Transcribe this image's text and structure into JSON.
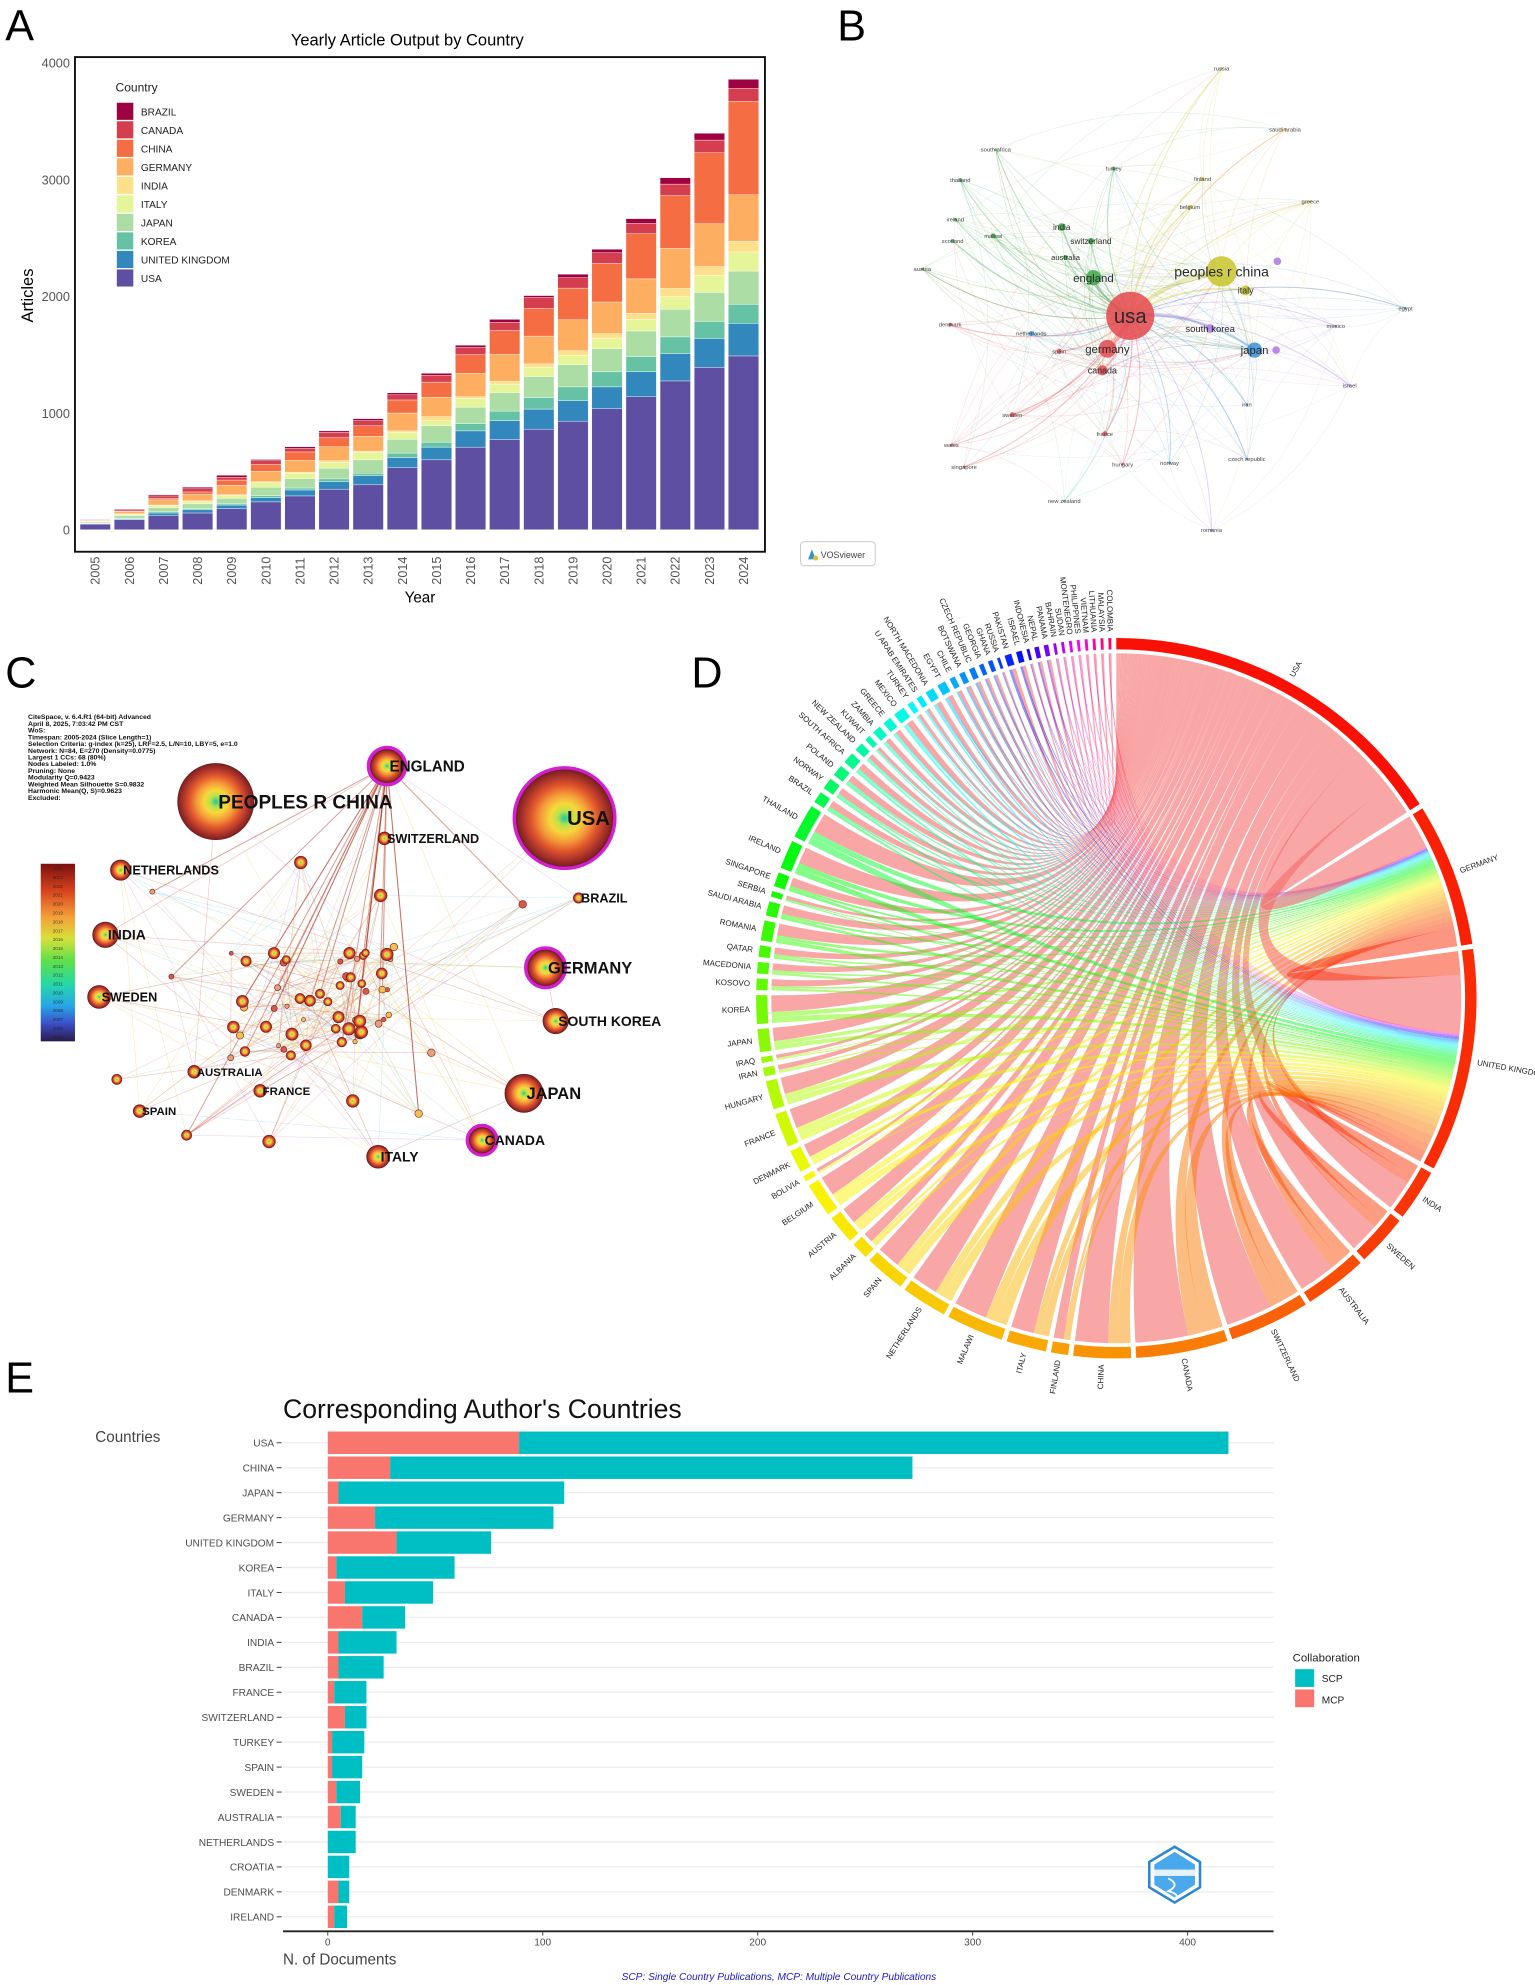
{
  "panels": {
    "a": "A",
    "b": "B",
    "c": "C",
    "d": "D",
    "e": "E"
  },
  "chart_data": [
    {
      "type": "bar",
      "stacked": true,
      "title": "Yearly Article Output by Country",
      "xlabel": "Year",
      "ylabel": "Articles",
      "ylim": [
        0,
        4000
      ],
      "yticks": [
        0,
        1000,
        2000,
        3000,
        4000
      ],
      "legend_title": "Country",
      "legend_position": "top-left",
      "categories": [
        "2005",
        "2006",
        "2007",
        "2008",
        "2009",
        "2010",
        "2011",
        "2012",
        "2013",
        "2014",
        "2015",
        "2016",
        "2017",
        "2018",
        "2019",
        "2020",
        "2021",
        "2022",
        "2023",
        "2024"
      ],
      "series": [
        {
          "name": "USA",
          "color": "#5e4fa2",
          "values": [
            48,
            85,
            119,
            143,
            180,
            238,
            289,
            347,
            384,
            530,
            598,
            707,
            771,
            860,
            928,
            1036,
            1138,
            1274,
            1390,
            1488
          ]
        },
        {
          "name": "UNITED KINGDOM",
          "color": "#3288bd",
          "values": [
            3,
            7,
            24,
            27,
            31,
            37,
            51,
            64,
            78,
            88,
            109,
            139,
            163,
            173,
            176,
            187,
            214,
            235,
            248,
            279
          ]
        },
        {
          "name": "KOREA",
          "color": "#66c2a5",
          "values": [
            3,
            7,
            10,
            10,
            10,
            17,
            17,
            24,
            21,
            38,
            41,
            61,
            82,
            99,
            119,
            129,
            130,
            142,
            146,
            163
          ]
        },
        {
          "name": "JAPAN",
          "color": "#abdda4",
          "values": [
            10,
            20,
            34,
            41,
            47,
            72,
            81,
            92,
            115,
            119,
            142,
            143,
            156,
            180,
            191,
            198,
            220,
            238,
            248,
            285
          ]
        },
        {
          "name": "ITALY",
          "color": "#e6f598",
          "values": [
            5,
            10,
            17,
            17,
            24,
            37,
            45,
            51,
            65,
            58,
            44,
            75,
            75,
            78,
            81,
            91,
            99,
            106,
            146,
            164
          ]
        },
        {
          "name": "INDIA",
          "color": "#fee08b",
          "values": [
            3,
            7,
            7,
            10,
            7,
            10,
            10,
            13,
            10,
            13,
            34,
            13,
            24,
            30,
            37,
            38,
            51,
            71,
            75,
            91
          ]
        },
        {
          "name": "GERMANY",
          "color": "#fdae61",
          "values": [
            7,
            17,
            44,
            54,
            82,
            89,
            102,
            119,
            126,
            153,
            167,
            201,
            231,
            238,
            266,
            271,
            296,
            343,
            367,
            398
          ]
        },
        {
          "name": "CHINA",
          "color": "#f46d43",
          "values": [
            3,
            7,
            13,
            21,
            44,
            61,
            71,
            78,
            91,
            112,
            129,
            160,
            204,
            238,
            271,
            330,
            387,
            452,
            608,
            802
          ]
        },
        {
          "name": "CANADA",
          "color": "#d53e4f",
          "values": [
            4,
            10,
            21,
            27,
            24,
            30,
            31,
            45,
            44,
            44,
            58,
            61,
            71,
            92,
            89,
            92,
            88,
            99,
            109,
            109
          ]
        },
        {
          "name": "BRAZIL",
          "color": "#9e0142",
          "values": [
            2,
            7,
            10,
            14,
            17,
            10,
            13,
            13,
            17,
            17,
            17,
            20,
            24,
            17,
            30,
            30,
            41,
            54,
            58,
            78
          ]
        }
      ]
    },
    {
      "type": "network",
      "badge": "VOSviewer",
      "cluster_colors": {
        "red": "#e5484d",
        "green": "#3aa845",
        "blue": "#3a8fd8",
        "yellow": "#c8c629",
        "purple": "#b27be6",
        "cyan": "#5cc6d8",
        "orange": "#e89a3c"
      },
      "nodes": [
        {
          "label": "usa",
          "cluster": "red",
          "weight": 19
        },
        {
          "label": "peoples r china",
          "cluster": "yellow",
          "weight": 12
        },
        {
          "label": "england",
          "cluster": "green",
          "weight": 6
        },
        {
          "label": "germany",
          "cluster": "red",
          "weight": 7
        },
        {
          "label": "japan",
          "cluster": "blue",
          "weight": 6
        },
        {
          "label": "south korea",
          "cluster": "purple",
          "weight": 3.5
        },
        {
          "label": "italy",
          "cluster": "yellow",
          "weight": 4
        },
        {
          "label": "canada",
          "cluster": "red",
          "weight": 4
        },
        {
          "label": "india",
          "cluster": "green",
          "weight": 3
        },
        {
          "label": "switzerland",
          "cluster": "green",
          "weight": 2.5
        },
        {
          "label": "australia",
          "cluster": "green",
          "weight": 2
        },
        {
          "label": "malawi",
          "cluster": "green",
          "weight": 2
        },
        {
          "label": "scotland",
          "cluster": "green",
          "weight": 1.5
        },
        {
          "label": "ireland",
          "cluster": "green",
          "weight": 1.2
        },
        {
          "label": "thailand",
          "cluster": "green",
          "weight": 1.5
        },
        {
          "label": "south africa",
          "cluster": "green",
          "weight": 1
        },
        {
          "label": "austria",
          "cluster": "green",
          "weight": 1
        },
        {
          "label": "denmark",
          "cluster": "red",
          "weight": 1.5
        },
        {
          "label": "netherlands",
          "cluster": "blue",
          "weight": 2
        },
        {
          "label": "spain",
          "cluster": "red",
          "weight": 2
        },
        {
          "label": "sweden",
          "cluster": "red",
          "weight": 2
        },
        {
          "label": "france",
          "cluster": "red",
          "weight": 2
        },
        {
          "label": "hungary",
          "cluster": "red",
          "weight": 1
        },
        {
          "label": "wales",
          "cluster": "red",
          "weight": 1
        },
        {
          "label": "singapore",
          "cluster": "red",
          "weight": 1
        },
        {
          "label": "new zealand",
          "cluster": "cyan",
          "weight": 1
        },
        {
          "label": "norway",
          "cluster": "blue",
          "weight": 1
        },
        {
          "label": "czech republic",
          "cluster": "blue",
          "weight": 1
        },
        {
          "label": "romania",
          "cluster": "purple",
          "weight": 1
        },
        {
          "label": "iran",
          "cluster": "blue",
          "weight": 1
        },
        {
          "label": "israel",
          "cluster": "purple",
          "weight": 1
        },
        {
          "label": "mexico",
          "cluster": "purple",
          "weight": 1
        },
        {
          "label": "egypt",
          "cluster": "blue",
          "weight": 1
        },
        {
          "label": "greece",
          "cluster": "yellow",
          "weight": 1
        },
        {
          "label": "saudi arabia",
          "cluster": "orange",
          "weight": 1.2
        },
        {
          "label": "russia",
          "cluster": "yellow",
          "weight": 1
        },
        {
          "label": "turkey",
          "cluster": "green",
          "weight": 1.5
        },
        {
          "label": "finland",
          "cluster": "yellow",
          "weight": 1.5
        },
        {
          "label": "belgium",
          "cluster": "yellow",
          "weight": 1.5
        }
      ]
    },
    {
      "type": "network",
      "info_lines": [
        "CiteSpace, v. 6.4.R1 (64-bit) Advanced",
        "April 8, 2025, 7:03:42 PM CST",
        "WoS:",
        "Timespan: 2005-2024 (Slice Length=1)",
        "Selection Criteria: g-index (k=25), LRF=2.5, L/N=10, LBY=5, e=1.0",
        "Network: N=84, E=270 (Density=0.0775)",
        "Largest 1 CCs: 68 (80%)",
        "Nodes Labeled: 1.0%",
        "Pruning: None",
        "Modularity Q=0.9423",
        "Weighted Mean Silhouette S=0.9832",
        "Harmonic Mean(Q, S)=0.9623",
        "Excluded:"
      ],
      "legend_years": [
        "2024",
        "2023",
        "2022",
        "2021",
        "2020",
        "2019",
        "2018",
        "2017",
        "2016",
        "2015",
        "2014",
        "2013",
        "2012",
        "2011",
        "2010",
        "2009",
        "2008",
        "2007",
        "2006",
        "2005"
      ],
      "labeled_nodes": [
        "PEOPLES R CHINA",
        "USA",
        "ENGLAND",
        "SWITZERLAND",
        "NETHERLANDS",
        "BRAZIL",
        "INDIA",
        "GERMANY",
        "SWEDEN",
        "SOUTH KOREA",
        "AUSTRALIA",
        "FRANCE",
        "JAPAN",
        "SPAIN",
        "CANADA",
        "ITALY"
      ],
      "high_centrality": [
        "USA",
        "ENGLAND",
        "GERMANY",
        "CANADA"
      ]
    },
    {
      "type": "chord",
      "sectors": [
        {
          "name": "USA",
          "value": 62
        },
        {
          "name": "GERMANY",
          "value": 25
        },
        {
          "name": "UNITED KINGDOM",
          "value": 39
        },
        {
          "name": "INDIA",
          "value": 9
        },
        {
          "name": "SWEDEN",
          "value": 9
        },
        {
          "name": "AUSTRALIA",
          "value": 11
        },
        {
          "name": "SWITZERLAND",
          "value": 14
        },
        {
          "name": "CANADA",
          "value": 16
        },
        {
          "name": "CHINA",
          "value": 10
        },
        {
          "name": "FINLAND",
          "value": 3
        },
        {
          "name": "ITALY",
          "value": 7
        },
        {
          "name": "MALAWI",
          "value": 10
        },
        {
          "name": "NETHERLANDS",
          "value": 8
        },
        {
          "name": "SPAIN",
          "value": 7
        },
        {
          "name": "ALBANIA",
          "value": 3
        },
        {
          "name": "AUSTRIA",
          "value": 5
        },
        {
          "name": "BELGIUM",
          "value": 6
        },
        {
          "name": "BOLIVIA",
          "value": 1
        },
        {
          "name": "DENMARK",
          "value": 4
        },
        {
          "name": "FRANCE",
          "value": 6
        },
        {
          "name": "HUNGARY",
          "value": 5
        },
        {
          "name": "IRAN",
          "value": 1.5
        },
        {
          "name": "IRAQ",
          "value": 1
        },
        {
          "name": "JAPAN",
          "value": 4
        },
        {
          "name": "KOREA",
          "value": 5
        },
        {
          "name": "KOSOVO",
          "value": 2
        },
        {
          "name": "MACEDONIA",
          "value": 2
        },
        {
          "name": "QATAR",
          "value": 2
        },
        {
          "name": "ROMANIA",
          "value": 3.5
        },
        {
          "name": "SAUDI ARABIA",
          "value": 2.5
        },
        {
          "name": "SERBIA",
          "value": 1
        },
        {
          "name": "SINGAPORE",
          "value": 2.5
        },
        {
          "name": "IRELAND",
          "value": 5
        },
        {
          "name": "THAILAND",
          "value": 6
        },
        {
          "name": "BRAZIL",
          "value": 2
        },
        {
          "name": "NORWAY",
          "value": 2
        },
        {
          "name": "POLAND",
          "value": 2
        },
        {
          "name": "SOUTH AFRICA",
          "value": 2
        },
        {
          "name": "NEW ZEALAND",
          "value": 1.5
        },
        {
          "name": "KUWAIT",
          "value": 1
        },
        {
          "name": "ZAMBIA",
          "value": 1.5
        },
        {
          "name": "GREECE",
          "value": 1.5
        },
        {
          "name": "MEXICO",
          "value": 2
        },
        {
          "name": "TURKEY",
          "value": 1
        },
        {
          "name": "U ARAB EMIRATES",
          "value": 1
        },
        {
          "name": "NORTH MACEDONIA",
          "value": 1.5
        },
        {
          "name": "EGYPT",
          "value": 1.5
        },
        {
          "name": "CHILE",
          "value": 1
        },
        {
          "name": "BOTSWANA",
          "value": 1
        },
        {
          "name": "CZECH REPUBLIC",
          "value": 1
        },
        {
          "name": "GEORGIA",
          "value": 0.8
        },
        {
          "name": "GHANA",
          "value": 0.8
        },
        {
          "name": "RUSSIA",
          "value": 0.5
        },
        {
          "name": "PAKISTAN",
          "value": 1.2
        },
        {
          "name": "ISRAEL",
          "value": 1
        },
        {
          "name": "INDONESIA",
          "value": 0.5
        },
        {
          "name": "NEPAL",
          "value": 0.8
        },
        {
          "name": "PANAMA",
          "value": 0.8
        },
        {
          "name": "BAHRAIN",
          "value": 0.5
        },
        {
          "name": "SUDAN",
          "value": 0.5
        },
        {
          "name": "MONTENEGRO",
          "value": 0.5
        },
        {
          "name": "PHILIPPINES",
          "value": 0.5
        },
        {
          "name": "VIETNAM",
          "value": 0.5
        },
        {
          "name": "LITHUANIA",
          "value": 0.5
        },
        {
          "name": "MALAYSIA",
          "value": 0.5
        },
        {
          "name": "COLOMBIA",
          "value": 0.5
        }
      ],
      "link_shares": {
        "USA": 0.6,
        "UNITED KINGDOM": 0.22,
        "GERMANY": 0.18
      },
      "hub_links": [
        [
          "GERMANY",
          "USA",
          15
        ],
        [
          "UNITED KINGDOM",
          "USA",
          20
        ],
        [
          "UNITED KINGDOM",
          "GERMANY",
          8
        ]
      ]
    },
    {
      "type": "bar",
      "orientation": "horizontal",
      "stacked": true,
      "title": "Corresponding Author's Countries",
      "ylabel": "Countries",
      "xlabel": "N. of Documents",
      "xticks": [
        0,
        100,
        200,
        300,
        400
      ],
      "legend_title": "Collaboration",
      "legend_position": "right",
      "footnote": "SCP: Single Country Publications, MCP: Multiple Country Publications",
      "logo_text": "BIBLIOMETRIX",
      "categories": [
        "USA",
        "CHINA",
        "JAPAN",
        "GERMANY",
        "UNITED KINGDOM",
        "KOREA",
        "ITALY",
        "CANADA",
        "INDIA",
        "BRAZIL",
        "FRANCE",
        "SWITZERLAND",
        "TURKEY",
        "SPAIN",
        "SWEDEN",
        "AUSTRALIA",
        "NETHERLANDS",
        "CROATIA",
        "DENMARK",
        "IRELAND"
      ],
      "series": [
        {
          "name": "SCP",
          "color": "#00bfc4",
          "values": [
            330,
            243,
            105,
            83,
            44,
            55,
            41,
            20,
            27,
            21,
            15,
            10,
            15,
            14,
            11,
            7,
            13,
            10,
            5,
            6
          ]
        },
        {
          "name": "MCP",
          "color": "#f8766d",
          "values": [
            89,
            29,
            5,
            22,
            32,
            4,
            8,
            16,
            5,
            5,
            3,
            8,
            2,
            2,
            4,
            6,
            0,
            0,
            5,
            3
          ]
        }
      ]
    }
  ]
}
